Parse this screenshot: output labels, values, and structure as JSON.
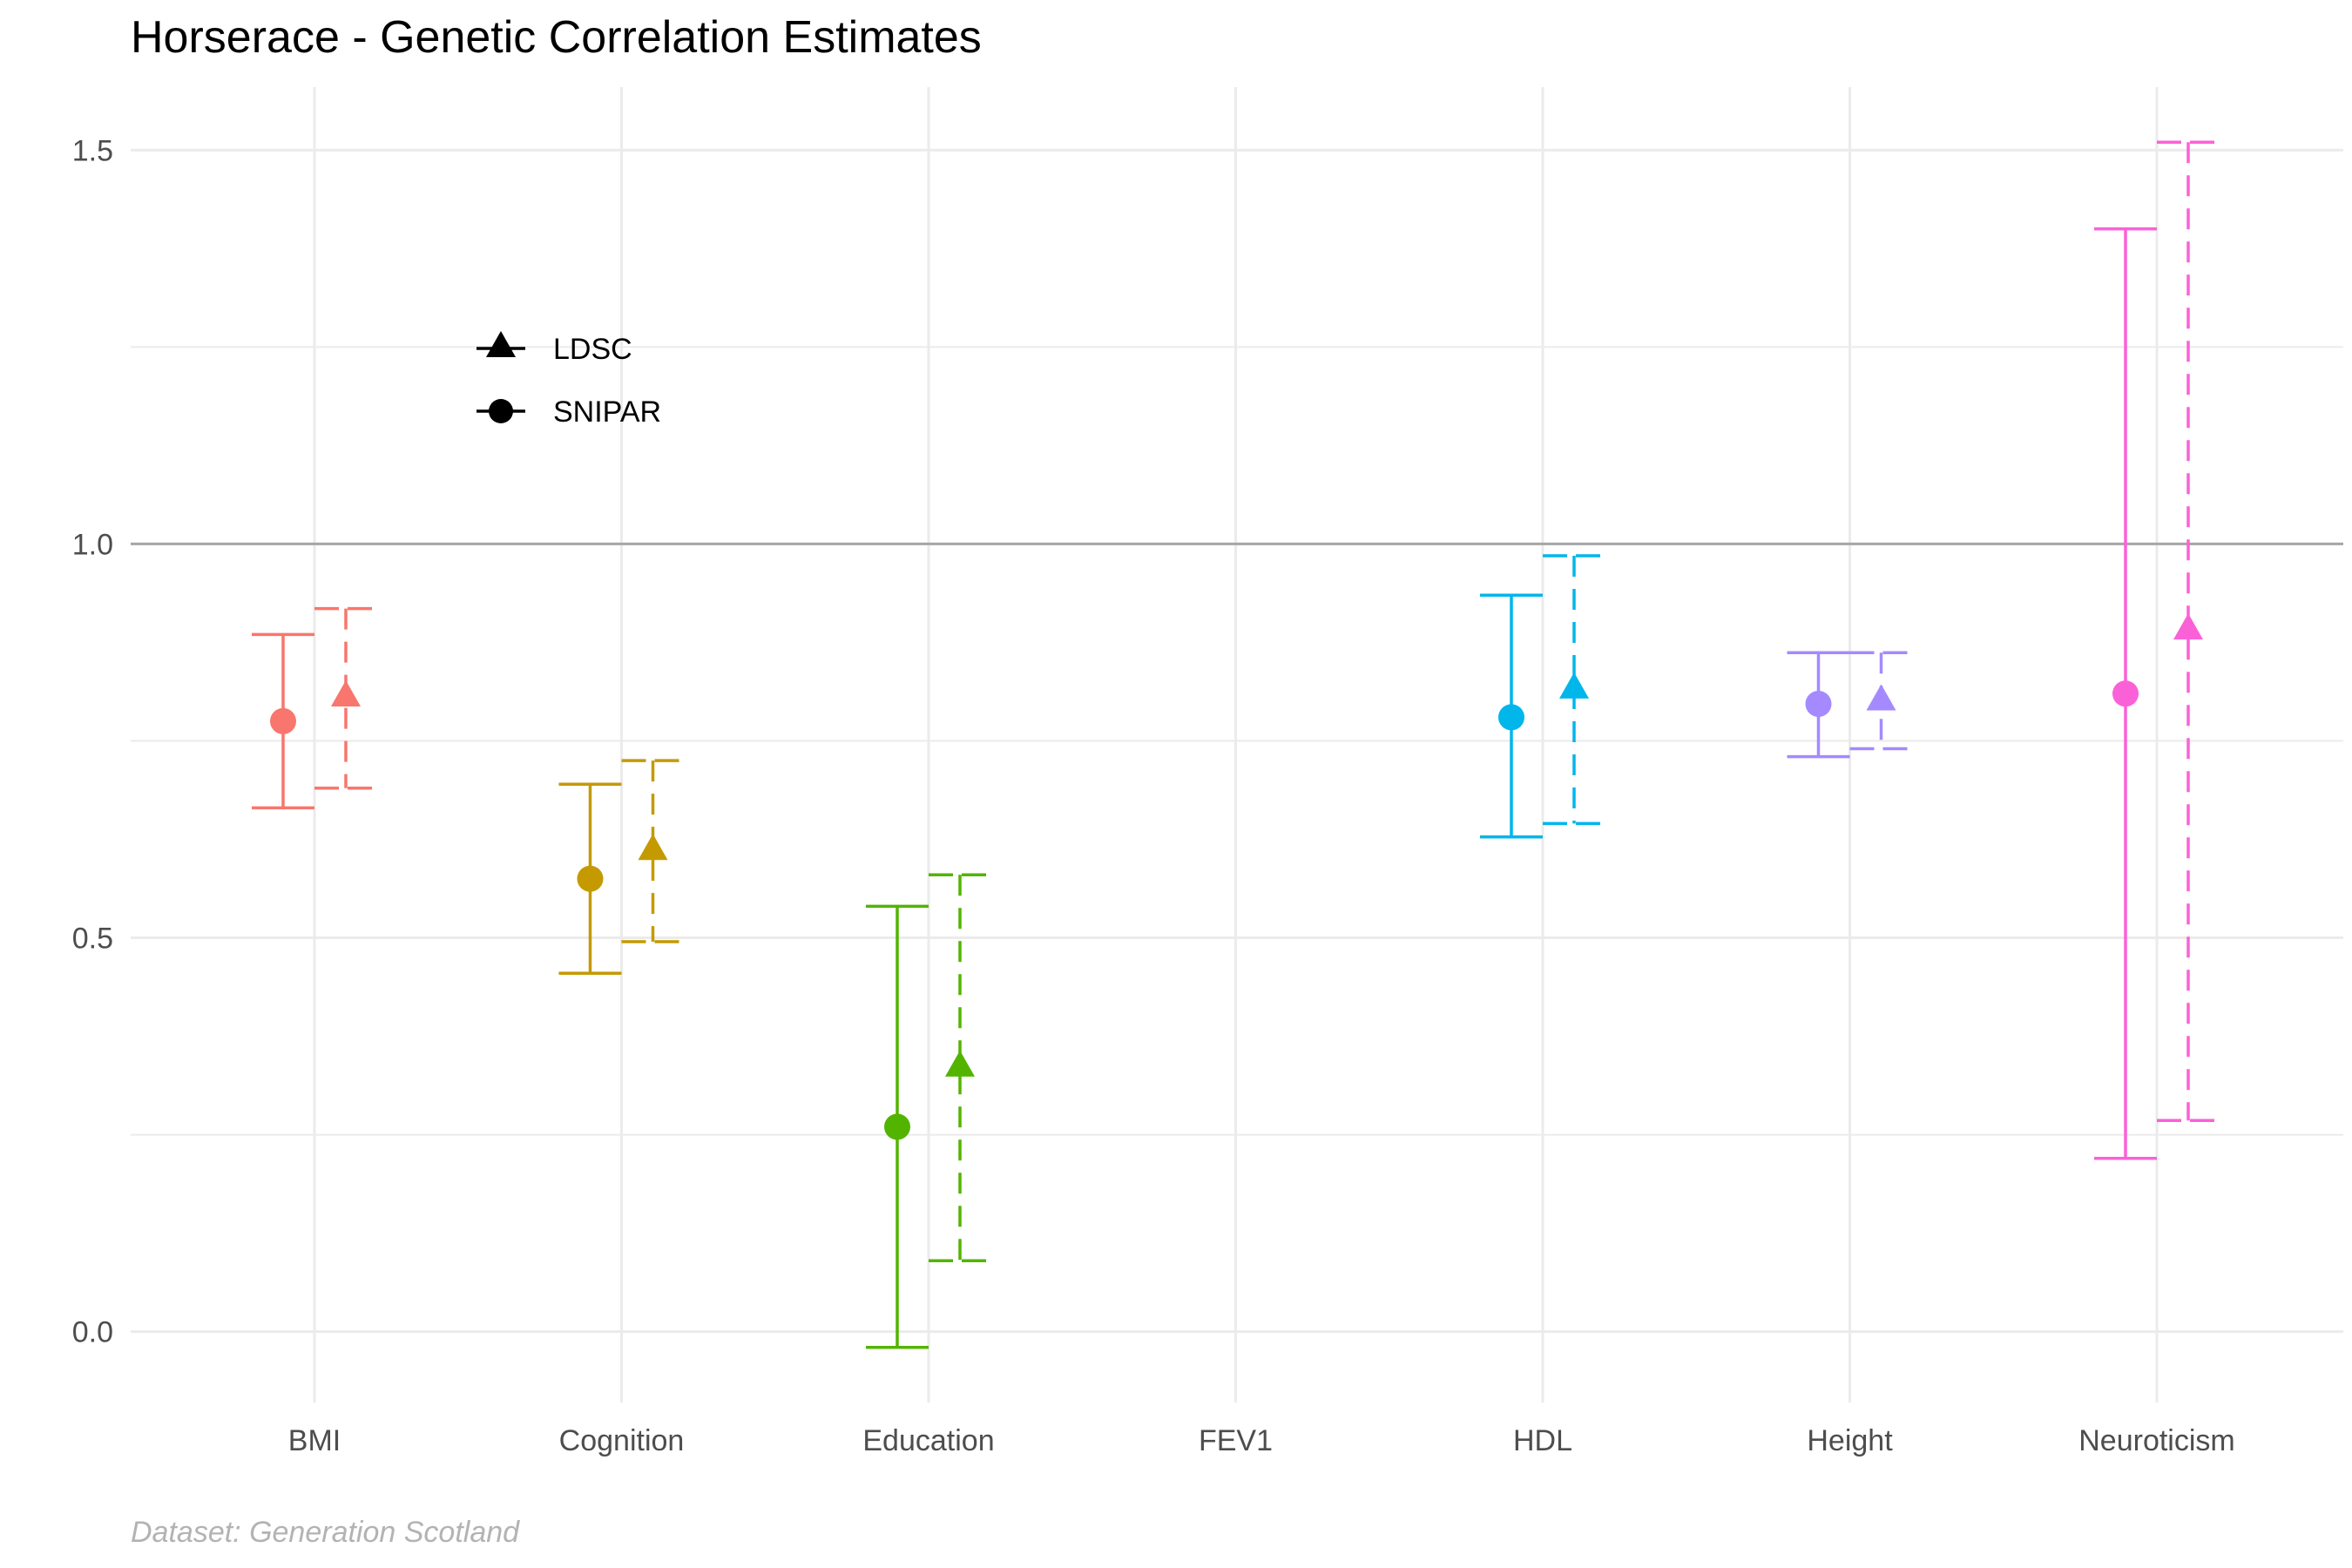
{
  "chart_data": {
    "type": "scatter",
    "title": "Horserace - Genetic Correlation Estimates",
    "xlabel": "",
    "ylabel": "",
    "caption": "Dataset: Generation Scotland",
    "categories": [
      "BMI",
      "Cognition",
      "Education",
      "FEV1",
      "HDL",
      "Height",
      "Neuroticism"
    ],
    "ylim": [
      -0.09,
      1.58
    ],
    "y_ticks": [
      "0.0",
      "0.5",
      "1.0",
      "1.5"
    ],
    "y_tick_values": [
      0.0,
      0.5,
      1.0,
      1.5
    ],
    "reference_line": 1.0,
    "grid": true,
    "legend": {
      "placement": "top-left",
      "entries": [
        "LDSC",
        "SNIPAR"
      ]
    },
    "colors": {
      "BMI": "#F8766D",
      "Cognition": "#C49A00",
      "Education": "#53B400",
      "FEV1": "#00C094",
      "HDL": "#00B6EB",
      "Height": "#A58AFF",
      "Neuroticism": "#FB61D7"
    },
    "series": [
      {
        "name": "SNIPAR",
        "marker": "circle",
        "line": "solid",
        "points": [
          {
            "category": "BMI",
            "y": 0.775,
            "lower": 0.665,
            "upper": 0.885
          },
          {
            "category": "Cognition",
            "y": 0.575,
            "lower": 0.455,
            "upper": 0.695
          },
          {
            "category": "Education",
            "y": 0.26,
            "lower": -0.02,
            "upper": 0.54
          },
          {
            "category": "HDL",
            "y": 0.78,
            "lower": 0.628,
            "upper": 0.935
          },
          {
            "category": "Height",
            "y": 0.797,
            "lower": 0.73,
            "upper": 0.862
          },
          {
            "category": "Neuroticism",
            "y": 0.81,
            "lower": 0.22,
            "upper": 1.4
          }
        ]
      },
      {
        "name": "LDSC",
        "marker": "triangle",
        "line": "dashed",
        "points": [
          {
            "category": "BMI",
            "y": 0.805,
            "lower": 0.69,
            "upper": 0.918
          },
          {
            "category": "Cognition",
            "y": 0.61,
            "lower": 0.495,
            "upper": 0.725
          },
          {
            "category": "Education",
            "y": 0.335,
            "lower": 0.09,
            "upper": 0.58
          },
          {
            "category": "HDL",
            "y": 0.815,
            "lower": 0.645,
            "upper": 0.985
          },
          {
            "category": "Height",
            "y": 0.8,
            "lower": 0.74,
            "upper": 0.862
          },
          {
            "category": "Neuroticism",
            "y": 0.89,
            "lower": 0.268,
            "upper": 1.51
          }
        ]
      }
    ]
  }
}
